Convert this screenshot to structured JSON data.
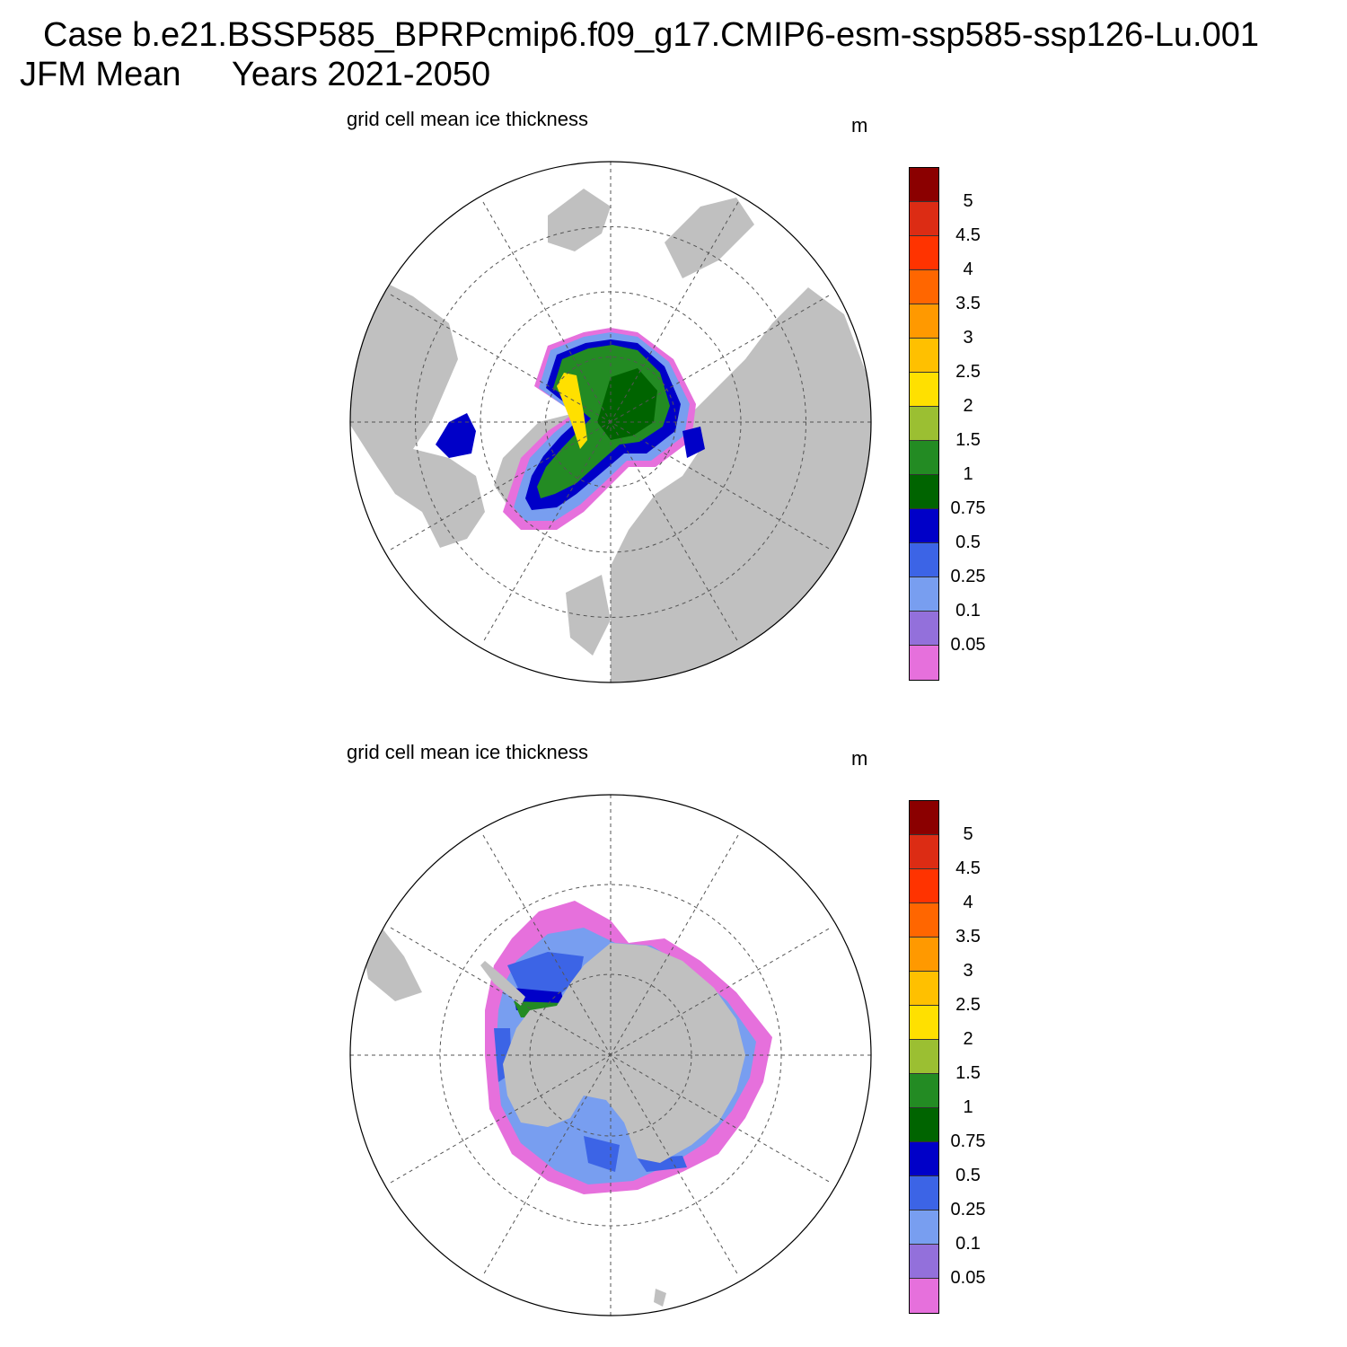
{
  "title": {
    "line1": "Case b.e21.BSSP585_BPRPcmip6.f09_g17.CMIP6-esm-ssp585-ssp126-Lu.001",
    "season": "JFM Mean",
    "years": "Years 2021-2050"
  },
  "panels": [
    {
      "hemisphere": "north",
      "title": "grid cell mean ice thickness",
      "units": "m"
    },
    {
      "hemisphere": "south",
      "title": "grid cell mean ice thickness",
      "units": "m"
    }
  ],
  "colorbar": {
    "labels": [
      "5",
      "4.5",
      "4",
      "3.5",
      "3",
      "2.5",
      "2",
      "1.5",
      "1",
      "0.75",
      "0.5",
      "0.25",
      "0.1",
      "0.05"
    ],
    "colors": [
      "#8b0000",
      "#dc2c14",
      "#ff3300",
      "#ff6600",
      "#ff9900",
      "#ffc000",
      "#ffe000",
      "#9bbf32",
      "#238b23",
      "#006400",
      "#0000c8",
      "#3c64e6",
      "#789ef0",
      "#9370db",
      "#e670dc"
    ]
  },
  "map_colors": {
    "land": "#c0c0c0",
    "ocean": "#ffffff"
  }
}
